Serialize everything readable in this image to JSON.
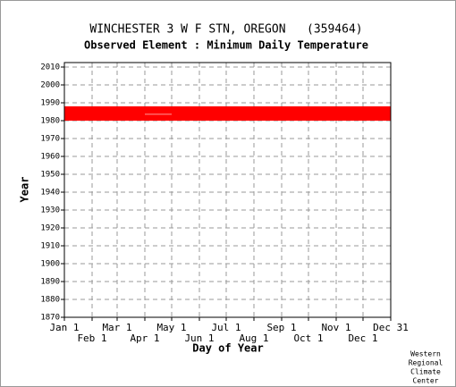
{
  "chart_data": {
    "type": "availability",
    "title": "WINCHESTER 3 W F STN, OREGON   (359464)",
    "subtitle": "Observed Element : Minimum Daily Temperature",
    "x_label": "Day of Year",
    "y_label": "Year",
    "credit": [
      "Western",
      "Regional",
      "Climate",
      "Center"
    ],
    "color": "#ff0000",
    "gap_color": "#ffffff",
    "bands": [
      {
        "x0": 1,
        "x1": 366,
        "y0": 1980,
        "y1": 1988
      }
    ],
    "gaps": [
      {
        "x0": 91,
        "x1": 121,
        "y0": 1983.4,
        "y1": 1983.7
      }
    ],
    "xlim": [
      1,
      366
    ],
    "ylim": [
      1870,
      2012.5
    ],
    "xticks": [
      {
        "value": 1,
        "label": "Jan 1"
      },
      {
        "value": 32,
        "label": "Feb 1"
      },
      {
        "value": 60,
        "label": "Mar 1"
      },
      {
        "value": 91,
        "label": "Apr 1"
      },
      {
        "value": 121,
        "label": "May 1"
      },
      {
        "value": 152,
        "label": "Jun 1"
      },
      {
        "value": 182,
        "label": "Jul 1"
      },
      {
        "value": 213,
        "label": "Aug 1"
      },
      {
        "value": 244,
        "label": "Sep 1"
      },
      {
        "value": 274,
        "label": "Oct 1"
      },
      {
        "value": 305,
        "label": "Nov 1"
      },
      {
        "value": 335,
        "label": "Dec 1"
      },
      {
        "value": 366,
        "label": "Dec 31"
      }
    ],
    "yticks": [
      1870,
      1880,
      1890,
      1900,
      1910,
      1920,
      1930,
      1940,
      1950,
      1960,
      1970,
      1980,
      1990,
      2000,
      2010
    ],
    "grid": true
  }
}
